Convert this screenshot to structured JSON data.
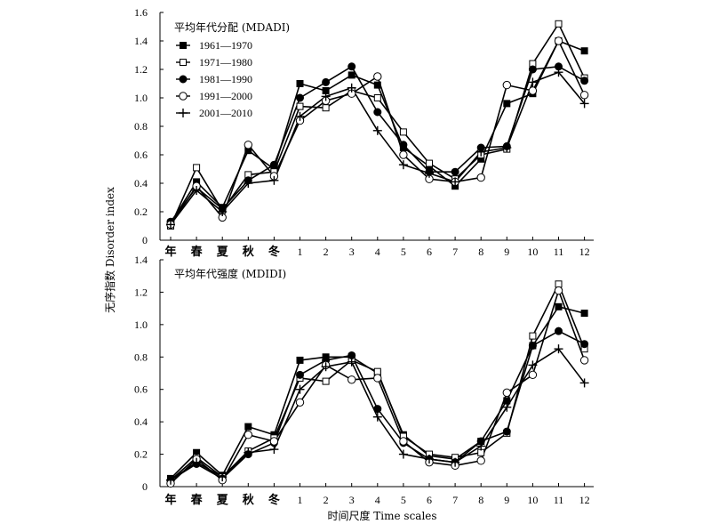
{
  "chart_data": [
    {
      "type": "line",
      "title": "平均年代分配 (MDADI)",
      "ylim": [
        0,
        1.6
      ],
      "yticks": [
        "0",
        "0.2",
        "0.4",
        "0.6",
        "0.8",
        "1.0",
        "1.2",
        "1.4",
        "1.6"
      ],
      "categories": [
        "年",
        "春",
        "夏",
        "秋",
        "冬",
        "1",
        "2",
        "3",
        "4",
        "5",
        "6",
        "7",
        "8",
        "9",
        "10",
        "11",
        "12"
      ],
      "legend": "top-left",
      "series": [
        {
          "name": "1961—1970",
          "marker": "filled-square",
          "values": [
            0.12,
            0.41,
            0.23,
            0.63,
            0.5,
            1.1,
            1.05,
            1.16,
            1.09,
            0.65,
            0.52,
            0.38,
            0.57,
            0.96,
            1.03,
            1.4,
            1.33
          ]
        },
        {
          "name": "1971—1980",
          "marker": "open-square",
          "values": [
            0.1,
            0.51,
            0.21,
            0.46,
            0.48,
            0.94,
            0.93,
            1.05,
            1.0,
            0.76,
            0.54,
            0.43,
            0.6,
            0.64,
            1.24,
            1.52,
            1.14
          ]
        },
        {
          "name": "1981—1990",
          "marker": "filled-circle",
          "values": [
            0.13,
            0.37,
            0.22,
            0.42,
            0.53,
            1.0,
            1.11,
            1.22,
            0.9,
            0.67,
            0.48,
            0.48,
            0.65,
            0.66,
            1.2,
            1.22,
            1.12
          ]
        },
        {
          "name": "1991—2000",
          "marker": "open-circle",
          "values": [
            0.11,
            0.38,
            0.16,
            0.67,
            0.45,
            0.84,
            0.98,
            1.03,
            1.15,
            0.6,
            0.43,
            0.41,
            0.44,
            1.09,
            1.05,
            1.4,
            1.02
          ]
        },
        {
          "name": "2001—2010",
          "marker": "plus",
          "values": [
            0.11,
            0.35,
            0.2,
            0.4,
            0.42,
            0.87,
            1.01,
            1.07,
            0.77,
            0.53,
            0.47,
            0.41,
            0.62,
            0.65,
            1.11,
            1.18,
            0.96
          ]
        }
      ]
    },
    {
      "type": "line",
      "title": "平均年代强度 (MDIDI)",
      "ylim": [
        0,
        1.4
      ],
      "yticks": [
        "0",
        "0.2",
        "0.4",
        "0.6",
        "0.8",
        "1.0",
        "1.2",
        "1.4"
      ],
      "categories": [
        "年",
        "春",
        "夏",
        "秋",
        "冬",
        "1",
        "2",
        "3",
        "4",
        "5",
        "6",
        "7",
        "8",
        "9",
        "10",
        "11",
        "12"
      ],
      "series": [
        {
          "name": "1961—1970",
          "marker": "filled-square",
          "values": [
            0.05,
            0.21,
            0.07,
            0.37,
            0.32,
            0.78,
            0.8,
            0.8,
            0.7,
            0.32,
            0.19,
            0.17,
            0.28,
            0.53,
            0.87,
            1.11,
            1.07
          ]
        },
        {
          "name": "1971—1980",
          "marker": "open-square",
          "values": [
            0.04,
            0.18,
            0.06,
            0.22,
            0.3,
            0.67,
            0.65,
            0.78,
            0.71,
            0.31,
            0.2,
            0.18,
            0.21,
            0.33,
            0.93,
            1.25,
            0.85
          ]
        },
        {
          "name": "1981—1990",
          "marker": "filled-circle",
          "values": [
            0.04,
            0.14,
            0.05,
            0.2,
            0.27,
            0.69,
            0.78,
            0.81,
            0.48,
            0.27,
            0.17,
            0.15,
            0.28,
            0.34,
            0.87,
            0.96,
            0.88
          ]
        },
        {
          "name": "1991—2000",
          "marker": "open-circle",
          "values": [
            0.02,
            0.17,
            0.04,
            0.32,
            0.28,
            0.52,
            0.75,
            0.66,
            0.67,
            0.28,
            0.15,
            0.13,
            0.16,
            0.58,
            0.69,
            1.21,
            0.78
          ]
        },
        {
          "name": "2001—2010",
          "marker": "plus",
          "values": [
            0.04,
            0.15,
            0.06,
            0.21,
            0.23,
            0.6,
            0.74,
            0.77,
            0.43,
            0.2,
            0.17,
            0.15,
            0.25,
            0.49,
            0.75,
            0.85,
            0.64
          ]
        }
      ]
    }
  ],
  "axes": {
    "ylabel": "无序指数 Disorder index",
    "xlabel": "时间尺度 Time scales"
  }
}
